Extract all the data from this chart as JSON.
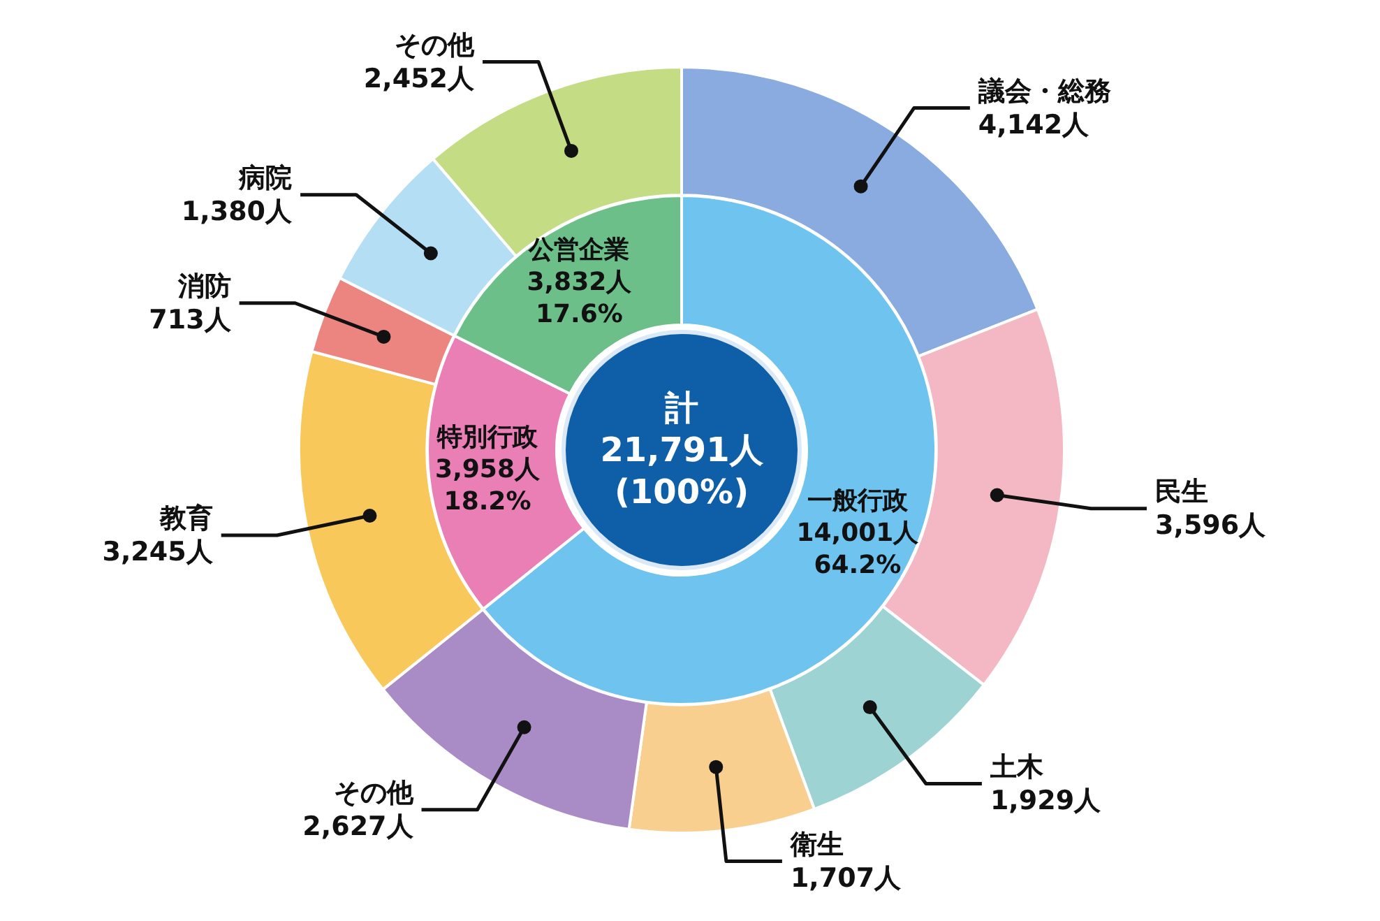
{
  "chart_data": [
    {
      "type": "donut",
      "categories": [
        "議会・総務",
        "民生",
        "土木",
        "衛生",
        "その他",
        "教育",
        "消防",
        "病院",
        "その他"
      ],
      "values": [
        4142,
        3596,
        1929,
        1707,
        2627,
        3245,
        713,
        1380,
        2452
      ],
      "colors": [
        "#89abdf",
        "#f4b8c5",
        "#9ed3d3",
        "#f8cf8f",
        "#a98cc6",
        "#f8c85a",
        "#ec8580",
        "#b4def4",
        "#c4dc84"
      ],
      "value_labels": [
        "4,142人",
        "3,596人",
        "1,929人",
        "1,707人",
        "2,627人",
        "3,245人",
        "713人",
        "1,380人",
        "2,452人"
      ]
    },
    {
      "type": "donut",
      "annotations": [
        "計",
        "21,791人",
        "(100%)"
      ],
      "categories": [
        "一般行政",
        "特別行政",
        "公営企業"
      ],
      "values": [
        14001,
        3958,
        3832
      ],
      "colors": [
        "#6ec3ef",
        "#e97fb5",
        "#6dbf8a"
      ],
      "value_labels": [
        "14,001人\n64.2%",
        "3,958人\n18.2%",
        "3,832人\n17.6%"
      ]
    }
  ]
}
